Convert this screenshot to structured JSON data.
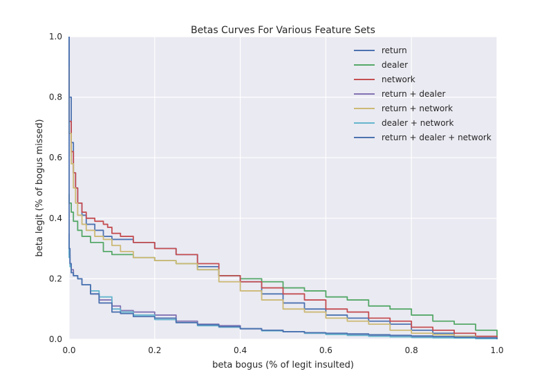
{
  "chart_data": {
    "type": "line",
    "title": "Betas Curves For Various Feature Sets",
    "xlabel": "beta bogus (% of legit insulted)",
    "ylabel": "beta legit (% of bogus missed)",
    "xlim": [
      0.0,
      1.0
    ],
    "ylim": [
      0.0,
      1.0
    ],
    "xticks": [
      "0.0",
      "0.2",
      "0.4",
      "0.6",
      "0.8",
      "1.0"
    ],
    "yticks": [
      "0.0",
      "0.2",
      "0.4",
      "0.6",
      "0.8",
      "1.0"
    ],
    "grid": true,
    "background": "#eaeaf2",
    "legend_position": "top-right",
    "series": [
      {
        "name": "return",
        "color": "#4c72b0",
        "x": [
          0.0,
          0.0,
          0.005,
          0.01,
          0.015,
          0.02,
          0.03,
          0.04,
          0.06,
          0.08,
          0.1,
          0.12,
          0.15,
          0.2,
          0.25,
          0.3,
          0.35,
          0.4,
          0.45,
          0.5,
          0.55,
          0.6,
          0.65,
          0.7,
          0.75,
          0.8,
          0.85,
          0.9,
          0.95,
          1.0
        ],
        "y": [
          1.0,
          0.8,
          0.65,
          0.55,
          0.5,
          0.45,
          0.41,
          0.38,
          0.36,
          0.34,
          0.33,
          0.33,
          0.32,
          0.3,
          0.28,
          0.24,
          0.21,
          0.19,
          0.15,
          0.12,
          0.1,
          0.08,
          0.07,
          0.06,
          0.05,
          0.03,
          0.02,
          0.01,
          0.005,
          0.0
        ]
      },
      {
        "name": "dealer",
        "color": "#55a868",
        "x": [
          0.0,
          0.0,
          0.005,
          0.01,
          0.02,
          0.03,
          0.05,
          0.08,
          0.1,
          0.15,
          0.2,
          0.25,
          0.3,
          0.35,
          0.4,
          0.45,
          0.5,
          0.55,
          0.6,
          0.65,
          0.7,
          0.75,
          0.8,
          0.85,
          0.9,
          0.95,
          1.0
        ],
        "y": [
          0.48,
          0.45,
          0.42,
          0.39,
          0.36,
          0.34,
          0.32,
          0.29,
          0.28,
          0.27,
          0.26,
          0.25,
          0.23,
          0.21,
          0.2,
          0.19,
          0.17,
          0.16,
          0.14,
          0.13,
          0.11,
          0.1,
          0.08,
          0.06,
          0.05,
          0.03,
          0.0
        ]
      },
      {
        "name": "network",
        "color": "#c44e52",
        "x": [
          0.0,
          0.0,
          0.005,
          0.01,
          0.015,
          0.02,
          0.03,
          0.04,
          0.06,
          0.08,
          0.09,
          0.1,
          0.12,
          0.15,
          0.2,
          0.25,
          0.3,
          0.35,
          0.4,
          0.45,
          0.5,
          0.55,
          0.6,
          0.65,
          0.7,
          0.75,
          0.8,
          0.85,
          0.9,
          0.95,
          1.0
        ],
        "y": [
          0.9,
          0.72,
          0.62,
          0.55,
          0.5,
          0.45,
          0.42,
          0.4,
          0.39,
          0.38,
          0.37,
          0.35,
          0.34,
          0.32,
          0.3,
          0.28,
          0.25,
          0.21,
          0.19,
          0.17,
          0.15,
          0.13,
          0.1,
          0.09,
          0.07,
          0.06,
          0.04,
          0.03,
          0.02,
          0.01,
          0.0
        ]
      },
      {
        "name": "return + dealer",
        "color": "#8172b2",
        "x": [
          0.0,
          0.0,
          0.002,
          0.005,
          0.01,
          0.02,
          0.03,
          0.05,
          0.07,
          0.1,
          0.12,
          0.15,
          0.2,
          0.25,
          0.3,
          0.35,
          0.4,
          0.45,
          0.5,
          0.55,
          0.6,
          0.65,
          0.7,
          0.75,
          0.8,
          0.85,
          0.9,
          0.95,
          1.0
        ],
        "y": [
          0.35,
          0.28,
          0.25,
          0.23,
          0.21,
          0.2,
          0.18,
          0.15,
          0.13,
          0.11,
          0.095,
          0.09,
          0.08,
          0.06,
          0.05,
          0.045,
          0.035,
          0.03,
          0.025,
          0.02,
          0.017,
          0.015,
          0.013,
          0.012,
          0.01,
          0.008,
          0.006,
          0.004,
          0.0
        ]
      },
      {
        "name": "return + network",
        "color": "#ccb974",
        "x": [
          0.0,
          0.0,
          0.005,
          0.01,
          0.015,
          0.02,
          0.03,
          0.04,
          0.06,
          0.08,
          0.1,
          0.12,
          0.15,
          0.2,
          0.25,
          0.3,
          0.35,
          0.4,
          0.45,
          0.5,
          0.55,
          0.6,
          0.65,
          0.7,
          0.75,
          0.8,
          0.85,
          0.9,
          0.95,
          1.0
        ],
        "y": [
          0.9,
          0.68,
          0.58,
          0.5,
          0.45,
          0.41,
          0.38,
          0.36,
          0.34,
          0.33,
          0.31,
          0.29,
          0.27,
          0.26,
          0.25,
          0.23,
          0.19,
          0.16,
          0.13,
          0.1,
          0.09,
          0.07,
          0.06,
          0.05,
          0.03,
          0.02,
          0.015,
          0.01,
          0.005,
          0.0
        ]
      },
      {
        "name": "dealer + network",
        "color": "#64b5cd",
        "x": [
          0.0,
          0.0,
          0.002,
          0.005,
          0.01,
          0.02,
          0.03,
          0.05,
          0.07,
          0.1,
          0.12,
          0.15,
          0.2,
          0.25,
          0.3,
          0.35,
          0.4,
          0.45,
          0.5,
          0.55,
          0.6,
          0.65,
          0.7,
          0.75,
          0.8,
          0.85,
          0.9,
          0.95,
          1.0
        ],
        "y": [
          0.34,
          0.27,
          0.24,
          0.22,
          0.21,
          0.2,
          0.18,
          0.16,
          0.14,
          0.1,
          0.09,
          0.08,
          0.065,
          0.055,
          0.045,
          0.04,
          0.035,
          0.028,
          0.025,
          0.02,
          0.016,
          0.013,
          0.01,
          0.008,
          0.006,
          0.005,
          0.004,
          0.002,
          0.0
        ]
      },
      {
        "name": "return + dealer + network",
        "color": "#4c72b0",
        "x": [
          0.0,
          0.0,
          0.002,
          0.005,
          0.01,
          0.02,
          0.03,
          0.05,
          0.07,
          0.1,
          0.12,
          0.15,
          0.2,
          0.25,
          0.3,
          0.35,
          0.4,
          0.45,
          0.5,
          0.55,
          0.6,
          0.65,
          0.7,
          0.75,
          0.8,
          0.85,
          0.9,
          0.95,
          1.0
        ],
        "y": [
          1.0,
          0.3,
          0.25,
          0.22,
          0.21,
          0.2,
          0.18,
          0.15,
          0.12,
          0.09,
          0.085,
          0.075,
          0.07,
          0.055,
          0.048,
          0.042,
          0.035,
          0.03,
          0.025,
          0.022,
          0.02,
          0.018,
          0.015,
          0.013,
          0.011,
          0.009,
          0.007,
          0.005,
          0.0
        ]
      }
    ]
  }
}
